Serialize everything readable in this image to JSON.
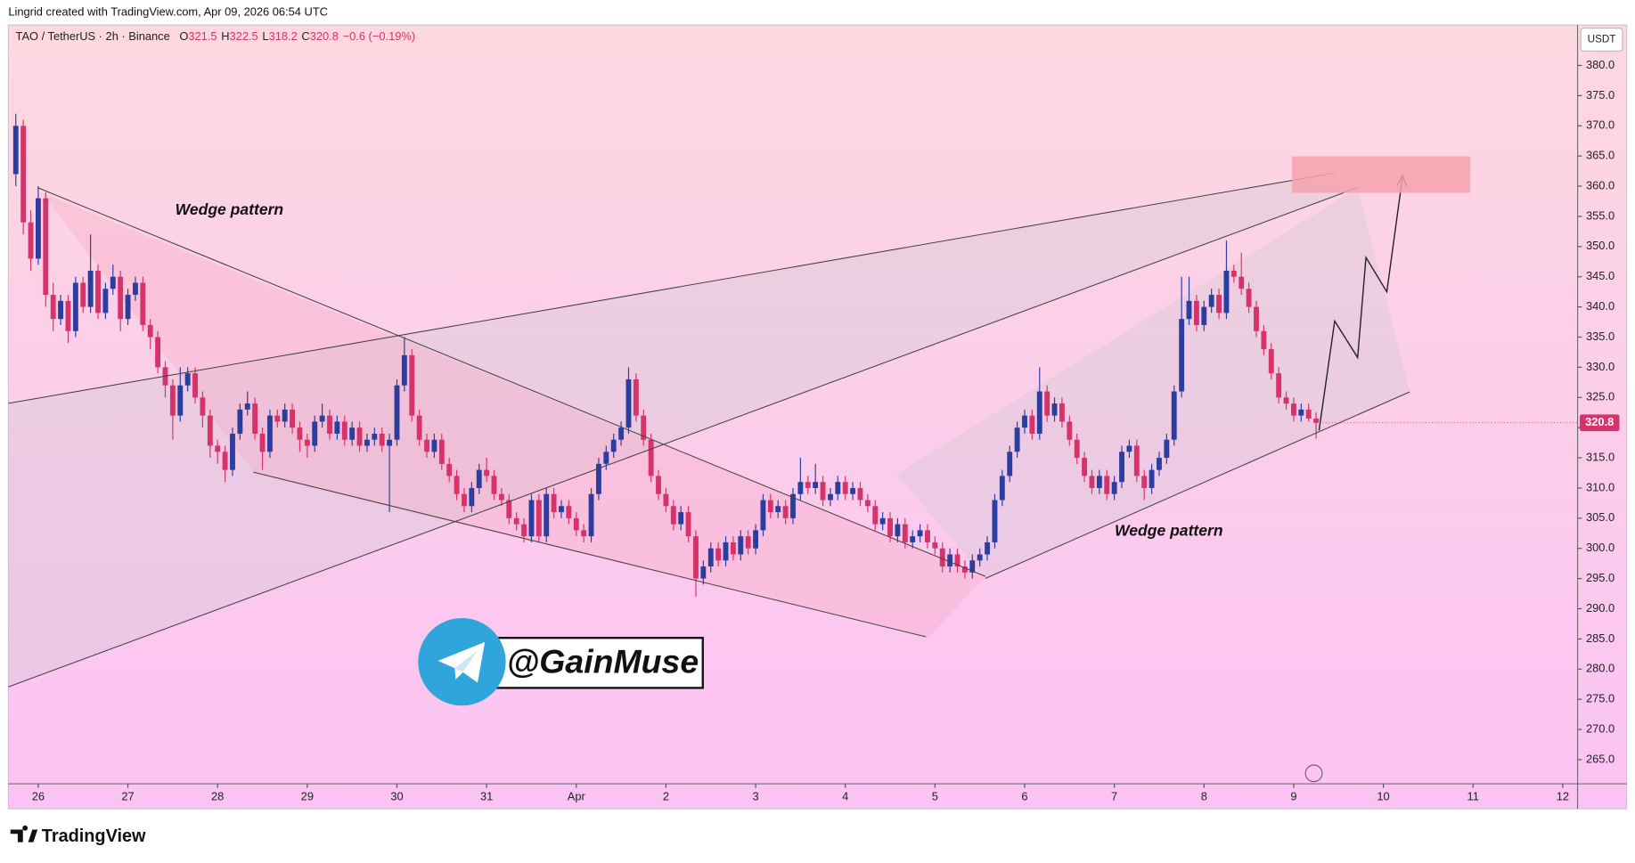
{
  "chart_data": {
    "type": "candlestick",
    "credit": "Lingrid created with TradingView.com, Apr 09, 2026 06:54 UTC",
    "title": "TAO / TetherUS · 2h · Binance",
    "ohlc_legend": [
      {
        "label": "O",
        "value": 321.5
      },
      {
        "label": "H",
        "value": 322.5
      },
      {
        "label": "L",
        "value": 318.2
      },
      {
        "label": "C",
        "value": 320.8
      }
    ],
    "change": "−0.6 (−0.19%)",
    "currency": "USDT",
    "last_price": 320.8,
    "annotations": [
      "Wedge pattern",
      "Wedge pattern",
      "@GainMuse"
    ],
    "brand": "TradingView",
    "up_color": "#2b3d9e",
    "down_color": "#d5336a",
    "grid": false,
    "xlim": [
      -1,
      209
    ],
    "xticks": [
      {
        "value": 3,
        "label": "26"
      },
      {
        "value": 15,
        "label": "27"
      },
      {
        "value": 27,
        "label": "28"
      },
      {
        "value": 39,
        "label": "29"
      },
      {
        "value": 51,
        "label": "30"
      },
      {
        "value": 63,
        "label": "31"
      },
      {
        "value": 75,
        "label": "Apr"
      },
      {
        "value": 87,
        "label": "2"
      },
      {
        "value": 99,
        "label": "3"
      },
      {
        "value": 111,
        "label": "4"
      },
      {
        "value": 123,
        "label": "5"
      },
      {
        "value": 135,
        "label": "6"
      },
      {
        "value": 147,
        "label": "7"
      },
      {
        "value": 159,
        "label": "8"
      },
      {
        "value": 171,
        "label": "9"
      },
      {
        "value": 183,
        "label": "10"
      },
      {
        "value": 195,
        "label": "11"
      },
      {
        "value": 207,
        "label": "12"
      }
    ],
    "ylim": [
      261,
      386.7
    ],
    "yticks": [
      {
        "value": 265,
        "label": "265.0"
      },
      {
        "value": 270,
        "label": "270.0"
      },
      {
        "value": 275,
        "label": "275.0"
      },
      {
        "value": 280,
        "label": "280.0"
      },
      {
        "value": 285,
        "label": "285.0"
      },
      {
        "value": 290,
        "label": "290.0"
      },
      {
        "value": 295,
        "label": "295.0"
      },
      {
        "value": 300,
        "label": "300.0"
      },
      {
        "value": 305,
        "label": "305.0"
      },
      {
        "value": 310,
        "label": "310.0"
      },
      {
        "value": 315,
        "label": "315.0"
      },
      {
        "value": 320,
        "label": "320.0"
      },
      {
        "value": 325,
        "label": "325.0"
      },
      {
        "value": 330,
        "label": "330.0"
      },
      {
        "value": 335,
        "label": "335.0"
      },
      {
        "value": 340,
        "label": "340.0"
      },
      {
        "value": 345,
        "label": "345.0"
      },
      {
        "value": 350,
        "label": "350.0"
      },
      {
        "value": 355,
        "label": "355.0"
      },
      {
        "value": 360,
        "label": "360.0"
      },
      {
        "value": 365,
        "label": "365.0"
      },
      {
        "value": 370,
        "label": "370.0"
      },
      {
        "value": 375,
        "label": "375.0"
      },
      {
        "value": 380,
        "label": "380.0"
      }
    ],
    "ohlc": [
      [
        362,
        372,
        360,
        370
      ],
      [
        370,
        371,
        352,
        354
      ],
      [
        354,
        356,
        346,
        348
      ],
      [
        348,
        360,
        347,
        358
      ],
      [
        358,
        359,
        340,
        342
      ],
      [
        342,
        344,
        336,
        338
      ],
      [
        338,
        342,
        337,
        341
      ],
      [
        341,
        342,
        334,
        336
      ],
      [
        336,
        345,
        335,
        344
      ],
      [
        344,
        345,
        339,
        340
      ],
      [
        340,
        352,
        339,
        346
      ],
      [
        346,
        347,
        338,
        339
      ],
      [
        339,
        344,
        338,
        343
      ],
      [
        343,
        347,
        342,
        345
      ],
      [
        345,
        346,
        336,
        338
      ],
      [
        338,
        343,
        337,
        342
      ],
      [
        342,
        345,
        341,
        344
      ],
      [
        344,
        345,
        336,
        337
      ],
      [
        337,
        338,
        333,
        335
      ],
      [
        335,
        336,
        329,
        330
      ],
      [
        330,
        331,
        325,
        327
      ],
      [
        327,
        328,
        318,
        322
      ],
      [
        322,
        330,
        321,
        327
      ],
      [
        327,
        330,
        326,
        329
      ],
      [
        329,
        330,
        324,
        325
      ],
      [
        325,
        326,
        320,
        322
      ],
      [
        322,
        323,
        315,
        317
      ],
      [
        317,
        318,
        314,
        316
      ],
      [
        316,
        317,
        311,
        313
      ],
      [
        313,
        320,
        312,
        319
      ],
      [
        319,
        324,
        318,
        323
      ],
      [
        323,
        326,
        322,
        324
      ],
      [
        324,
        325,
        318,
        319
      ],
      [
        319,
        320,
        313,
        316
      ],
      [
        316,
        323,
        315,
        322
      ],
      [
        322,
        323,
        320,
        321
      ],
      [
        321,
        324,
        320,
        323
      ],
      [
        323,
        324,
        319,
        320
      ],
      [
        320,
        321,
        316,
        318
      ],
      [
        318,
        319,
        315,
        317
      ],
      [
        317,
        322,
        316,
        321
      ],
      [
        321,
        324,
        320,
        322
      ],
      [
        322,
        323,
        318,
        319
      ],
      [
        319,
        322,
        318,
        321
      ],
      [
        321,
        322,
        317,
        318
      ],
      [
        318,
        321,
        317,
        320
      ],
      [
        320,
        321,
        316,
        317
      ],
      [
        317,
        319,
        316,
        318
      ],
      [
        318,
        320,
        317,
        319
      ],
      [
        319,
        320,
        316,
        317
      ],
      [
        317,
        319,
        306,
        318
      ],
      [
        318,
        328,
        317,
        327
      ],
      [
        327,
        335,
        326,
        332
      ],
      [
        332,
        333,
        321,
        322
      ],
      [
        322,
        323,
        317,
        318
      ],
      [
        318,
        319,
        315,
        316
      ],
      [
        316,
        319,
        315,
        318
      ],
      [
        318,
        319,
        313,
        314
      ],
      [
        314,
        315,
        311,
        312
      ],
      [
        312,
        313,
        308,
        309
      ],
      [
        309,
        310,
        306,
        307
      ],
      [
        307,
        311,
        306,
        310
      ],
      [
        310,
        314,
        309,
        313
      ],
      [
        313,
        315,
        311,
        312
      ],
      [
        312,
        313,
        308,
        309
      ],
      [
        309,
        310,
        307,
        308
      ],
      [
        308,
        309,
        304,
        305
      ],
      [
        305,
        306,
        303,
        304
      ],
      [
        304,
        305,
        301,
        302
      ],
      [
        302,
        309,
        301,
        308
      ],
      [
        308,
        309,
        301,
        302
      ],
      [
        302,
        310,
        301,
        309
      ],
      [
        309,
        310,
        305,
        306
      ],
      [
        306,
        308,
        305,
        307
      ],
      [
        307,
        308,
        304,
        305
      ],
      [
        305,
        306,
        302,
        303
      ],
      [
        303,
        304,
        301,
        302
      ],
      [
        302,
        310,
        301,
        309
      ],
      [
        309,
        315,
        308,
        314
      ],
      [
        314,
        317,
        313,
        316
      ],
      [
        316,
        319,
        315,
        318
      ],
      [
        318,
        321,
        317,
        320
      ],
      [
        320,
        330,
        319,
        328
      ],
      [
        328,
        329,
        321,
        322
      ],
      [
        322,
        323,
        317,
        318
      ],
      [
        318,
        319,
        311,
        312
      ],
      [
        312,
        313,
        308,
        309
      ],
      [
        309,
        310,
        306,
        307
      ],
      [
        307,
        308,
        303,
        304
      ],
      [
        304,
        307,
        303,
        306
      ],
      [
        306,
        307,
        301,
        302
      ],
      [
        302,
        303,
        292,
        295
      ],
      [
        295,
        298,
        294,
        297
      ],
      [
        297,
        301,
        296,
        300
      ],
      [
        300,
        301,
        297,
        298
      ],
      [
        298,
        302,
        297,
        301
      ],
      [
        301,
        302,
        298,
        299
      ],
      [
        299,
        303,
        298,
        302
      ],
      [
        302,
        303,
        299,
        300
      ],
      [
        300,
        304,
        299,
        303
      ],
      [
        303,
        309,
        302,
        308
      ],
      [
        308,
        309,
        305,
        306
      ],
      [
        306,
        308,
        305,
        307
      ],
      [
        307,
        308,
        304,
        305
      ],
      [
        305,
        310,
        304,
        309
      ],
      [
        309,
        315,
        308,
        311
      ],
      [
        311,
        312,
        309,
        310
      ],
      [
        310,
        314,
        309,
        311
      ],
      [
        311,
        312,
        307,
        308
      ],
      [
        308,
        310,
        307,
        309
      ],
      [
        309,
        312,
        308,
        311
      ],
      [
        311,
        312,
        308,
        309
      ],
      [
        309,
        311,
        308,
        310
      ],
      [
        310,
        311,
        307,
        308
      ],
      [
        308,
        309,
        306,
        307
      ],
      [
        307,
        308,
        303,
        304
      ],
      [
        304,
        306,
        303,
        305
      ],
      [
        305,
        306,
        301,
        302
      ],
      [
        302,
        305,
        301,
        304
      ],
      [
        304,
        305,
        300,
        301
      ],
      [
        301,
        303,
        300,
        302
      ],
      [
        302,
        304,
        301,
        303
      ],
      [
        303,
        304,
        300,
        301
      ],
      [
        301,
        302,
        299,
        300
      ],
      [
        300,
        301,
        296,
        297
      ],
      [
        297,
        300,
        296,
        299
      ],
      [
        299,
        300,
        296,
        297
      ],
      [
        297,
        298,
        295,
        296
      ],
      [
        296,
        299,
        295,
        298
      ],
      [
        298,
        300,
        297,
        299
      ],
      [
        299,
        302,
        298,
        301
      ],
      [
        301,
        309,
        300,
        308
      ],
      [
        308,
        313,
        307,
        312
      ],
      [
        312,
        317,
        311,
        316
      ],
      [
        316,
        321,
        315,
        320
      ],
      [
        320,
        323,
        319,
        322
      ],
      [
        322,
        323,
        318,
        319
      ],
      [
        319,
        330,
        318,
        326
      ],
      [
        326,
        327,
        321,
        322
      ],
      [
        322,
        325,
        321,
        324
      ],
      [
        324,
        325,
        320,
        321
      ],
      [
        321,
        322,
        317,
        318
      ],
      [
        318,
        319,
        314,
        315
      ],
      [
        315,
        316,
        311,
        312
      ],
      [
        312,
        313,
        309,
        310
      ],
      [
        310,
        313,
        309,
        312
      ],
      [
        312,
        313,
        308,
        309
      ],
      [
        309,
        312,
        308,
        311
      ],
      [
        311,
        317,
        310,
        316
      ],
      [
        316,
        318,
        315,
        317
      ],
      [
        317,
        318,
        311,
        312
      ],
      [
        312,
        313,
        308,
        310
      ],
      [
        310,
        314,
        309,
        313
      ],
      [
        313,
        316,
        312,
        315
      ],
      [
        315,
        319,
        314,
        318
      ],
      [
        318,
        327,
        317,
        326
      ],
      [
        326,
        345,
        325,
        338
      ],
      [
        338,
        345,
        337,
        341
      ],
      [
        341,
        342,
        336,
        337
      ],
      [
        337,
        341,
        336,
        340
      ],
      [
        340,
        343,
        339,
        342
      ],
      [
        342,
        343,
        338,
        339
      ],
      [
        339,
        351,
        338,
        346
      ],
      [
        346,
        347,
        344,
        345
      ],
      [
        345,
        349,
        342,
        343
      ],
      [
        343,
        344,
        339,
        340
      ],
      [
        340,
        341,
        335,
        336
      ],
      [
        336,
        337,
        332,
        333
      ],
      [
        333,
        334,
        328,
        329
      ],
      [
        329,
        330,
        324,
        325
      ],
      [
        325,
        326,
        323,
        324
      ],
      [
        324,
        325,
        321,
        322
      ],
      [
        322,
        324,
        321,
        323
      ],
      [
        323,
        324,
        321,
        321.5
      ],
      [
        321.5,
        322.5,
        318.2,
        320.8
      ]
    ]
  }
}
